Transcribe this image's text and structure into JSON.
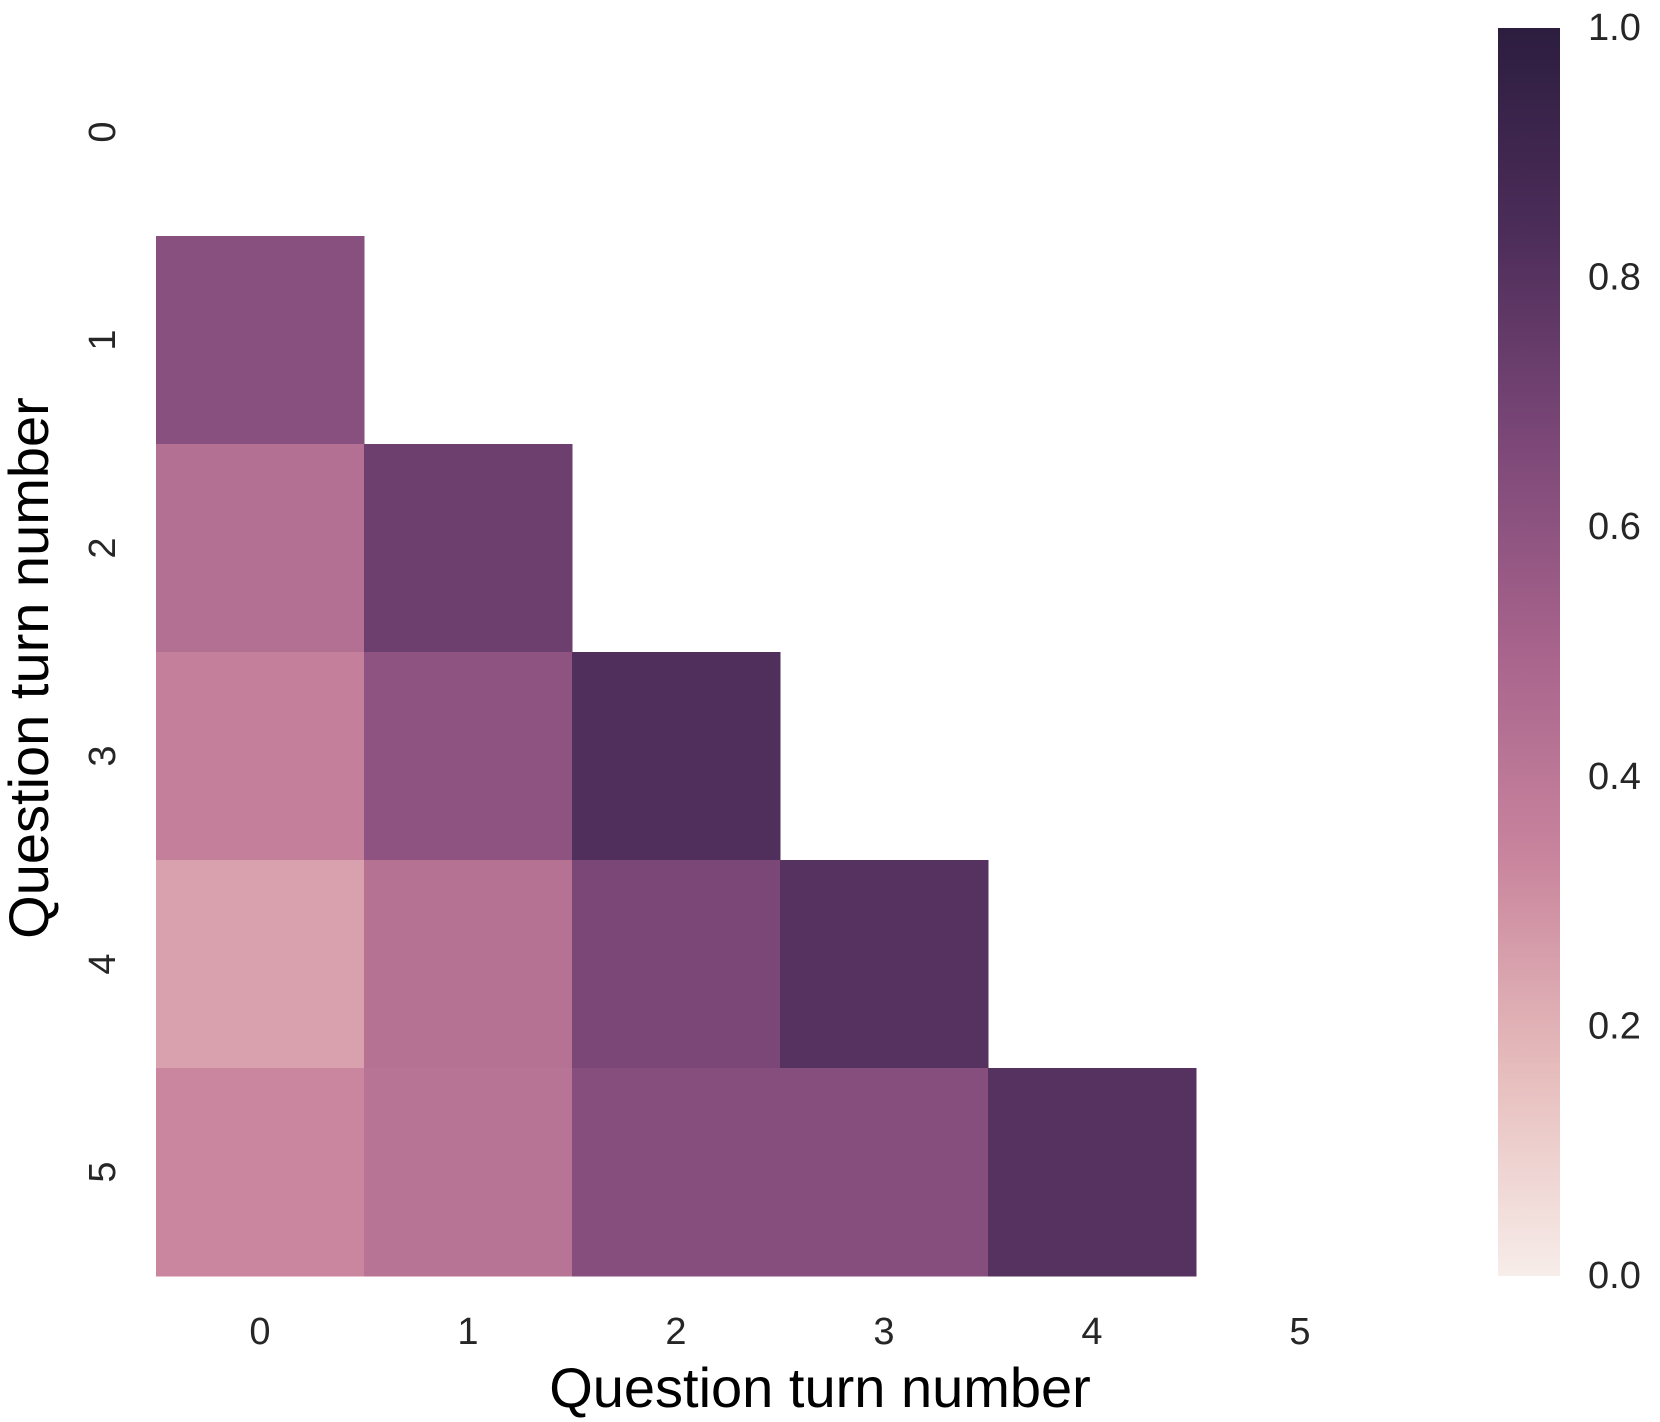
{
  "chart_data": {
    "type": "heatmap",
    "title": "",
    "xlabel": "Question turn number",
    "ylabel": "Question turn number",
    "x_categories": [
      "0",
      "1",
      "2",
      "3",
      "4",
      "5"
    ],
    "y_categories": [
      "0",
      "1",
      "2",
      "3",
      "4",
      "5"
    ],
    "mask": "upper triangle including diagonal",
    "values": [
      [
        null,
        null,
        null,
        null,
        null,
        null
      ],
      [
        0.62,
        null,
        null,
        null,
        null,
        null
      ],
      [
        0.44,
        0.72,
        null,
        null,
        null,
        null
      ],
      [
        0.36,
        0.6,
        0.82,
        null,
        null,
        null
      ],
      [
        0.25,
        0.43,
        0.67,
        0.8,
        null,
        null
      ],
      [
        0.33,
        0.42,
        0.63,
        0.63,
        0.8,
        null
      ]
    ],
    "colorbar": {
      "min": 0.0,
      "max": 1.0,
      "ticks": [
        "0.0",
        "0.2",
        "0.4",
        "0.6",
        "0.8",
        "1.0"
      ],
      "colors": [
        "#f7ede9",
        "#e6bcbc",
        "#c9859d",
        "#a8648c",
        "#7c4878",
        "#4d2d5a",
        "#2c1d3f"
      ]
    }
  }
}
